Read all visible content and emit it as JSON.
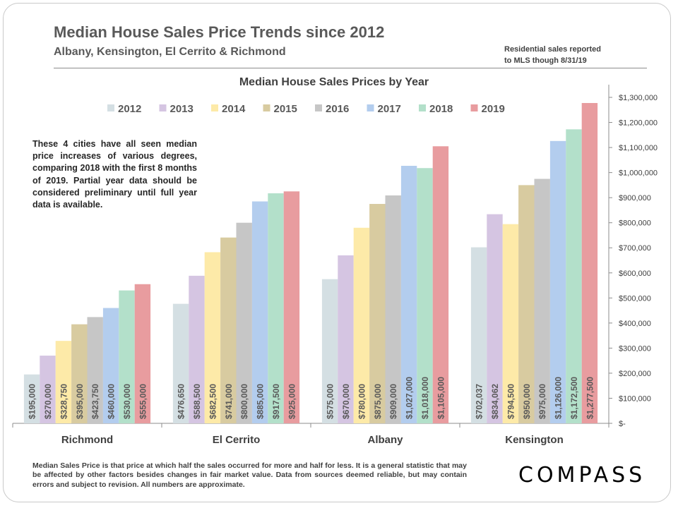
{
  "header": {
    "title": "Median House Sales Price Trends since 2012",
    "subtitle": "Albany, Kensington,  El Cerrito & Richmond",
    "note_line1": "Residential sales reported",
    "note_line2": "to MLS though 8/31/19"
  },
  "callout": "These 4 cities have all seen median price increases of various degrees, comparing 2018 with the first 8 months of 2019. Partial year data should be considered preliminary until full year data is available.",
  "footnote": "Median Sales Price is that price at which half the sales occurred for more and half for less. It is a general statistic that may be affected by other factors besides changes in fair market value. Data from sources deemed reliable, but may contain errors and subject to revision.  All numbers are approximate.",
  "logo": {
    "text": "COMPASS"
  },
  "chart_data": {
    "type": "bar",
    "title": "Median House Sales Prices by Year",
    "categories": [
      "Richmond",
      "El Cerrito",
      "Albany",
      "Kensington"
    ],
    "series": [
      {
        "name": "2012",
        "color": "#d4dfe3",
        "values": [
          195000,
          476650,
          575000,
          702037
        ],
        "labels": [
          "$195,000",
          "$476,650",
          "$575,000",
          "$702,037"
        ]
      },
      {
        "name": "2013",
        "color": "#d5c5e2",
        "values": [
          270000,
          588500,
          670000,
          834062
        ],
        "labels": [
          "$270,000",
          "$588,500",
          "$670,000",
          "$834,062"
        ]
      },
      {
        "name": "2014",
        "color": "#fdeaa8",
        "values": [
          328750,
          682500,
          780000,
          794500
        ],
        "labels": [
          "$328,750",
          "$682,500",
          "$780,000",
          "$794,500"
        ]
      },
      {
        "name": "2015",
        "color": "#d8cba0",
        "values": [
          395000,
          741000,
          875000,
          950000
        ],
        "labels": [
          "$395,000",
          "$741,000",
          "$875,000",
          "$950,000"
        ]
      },
      {
        "name": "2016",
        "color": "#c6c6c6",
        "values": [
          423750,
          800000,
          909000,
          975000
        ],
        "labels": [
          "$423,750",
          "$800,000",
          "$909,000",
          "$975,000"
        ]
      },
      {
        "name": "2017",
        "color": "#b3cdee",
        "values": [
          460000,
          885000,
          1027000,
          1126000
        ],
        "labels": [
          "$460,000",
          "$885,000",
          "$1,027,000",
          "$1,126,000"
        ]
      },
      {
        "name": "2018",
        "color": "#b3e0ca",
        "values": [
          530000,
          917500,
          1018000,
          1172500
        ],
        "labels": [
          "$530,000",
          "$917,500",
          "$1,018,000",
          "$1,172,500"
        ]
      },
      {
        "name": "2019",
        "color": "#e89c9f",
        "values": [
          555000,
          925000,
          1105000,
          1277500
        ],
        "labels": [
          "$555,000",
          "$925,000",
          "$1,105,000",
          "$1,277,500"
        ]
      }
    ],
    "ylim": [
      0,
      1300000
    ],
    "yticks": [
      0,
      100000,
      200000,
      300000,
      400000,
      500000,
      600000,
      700000,
      800000,
      900000,
      1000000,
      1100000,
      1200000,
      1300000
    ],
    "ytick_labels": [
      "$-",
      "$100,000",
      "$200,000",
      "$300,000",
      "$400,000",
      "$500,000",
      "$600,000",
      "$700,000",
      "$800,000",
      "$900,000",
      "$1,000,000",
      "$1,100,000",
      "$1,200,000",
      "$1,300,000"
    ],
    "y_axis_side": "right",
    "legend_placement": "top",
    "grid": false
  }
}
